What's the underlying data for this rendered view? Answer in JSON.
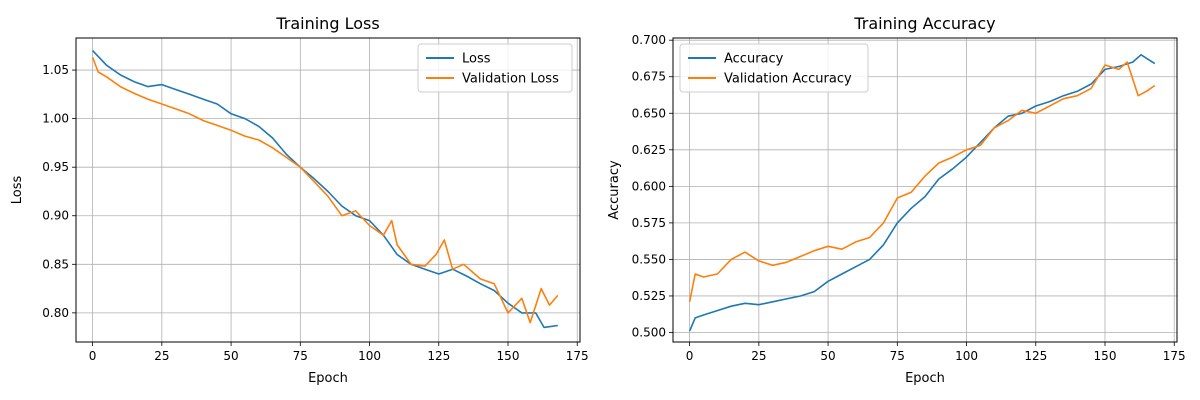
{
  "chart_data": [
    {
      "type": "line",
      "title": "Training Loss",
      "xlabel": "Epoch",
      "ylabel": "Loss",
      "xlim": [
        -6,
        176
      ],
      "ylim": [
        0.77,
        1.083
      ],
      "xticks": [
        0,
        25,
        50,
        75,
        100,
        125,
        150,
        175
      ],
      "yticks": [
        0.8,
        0.85,
        0.9,
        0.95,
        1.0,
        1.05
      ],
      "ytick_labels": [
        "0.80",
        "0.85",
        "0.90",
        "0.95",
        "1.00",
        "1.05"
      ],
      "grid": true,
      "legend_position": "upper right",
      "series": [
        {
          "name": "Loss",
          "color": "#1f77b4",
          "x": [
            0,
            5,
            10,
            15,
            20,
            25,
            30,
            35,
            40,
            45,
            50,
            55,
            60,
            65,
            70,
            75,
            80,
            85,
            90,
            95,
            100,
            105,
            110,
            115,
            120,
            125,
            130,
            135,
            140,
            145,
            150,
            155,
            160,
            163,
            168
          ],
          "y": [
            1.07,
            1.055,
            1.045,
            1.038,
            1.033,
            1.035,
            1.03,
            1.025,
            1.02,
            1.015,
            1.005,
            1.0,
            0.992,
            0.98,
            0.963,
            0.95,
            0.938,
            0.925,
            0.91,
            0.9,
            0.895,
            0.88,
            0.86,
            0.85,
            0.845,
            0.84,
            0.845,
            0.838,
            0.83,
            0.823,
            0.81,
            0.8,
            0.8,
            0.785,
            0.787
          ]
        },
        {
          "name": "Validation Loss",
          "color": "#ff7f0e",
          "x": [
            0,
            2,
            5,
            10,
            15,
            20,
            25,
            30,
            35,
            40,
            45,
            50,
            55,
            60,
            65,
            70,
            75,
            80,
            85,
            90,
            95,
            100,
            105,
            108,
            110,
            115,
            120,
            124,
            127,
            130,
            134,
            140,
            145,
            150,
            155,
            158,
            162,
            165,
            168
          ],
          "y": [
            1.063,
            1.048,
            1.043,
            1.033,
            1.026,
            1.02,
            1.015,
            1.01,
            1.005,
            0.998,
            0.993,
            0.988,
            0.982,
            0.978,
            0.97,
            0.96,
            0.95,
            0.935,
            0.92,
            0.9,
            0.905,
            0.89,
            0.88,
            0.895,
            0.87,
            0.85,
            0.848,
            0.86,
            0.875,
            0.845,
            0.85,
            0.835,
            0.83,
            0.8,
            0.815,
            0.79,
            0.825,
            0.808,
            0.818
          ]
        }
      ]
    },
    {
      "type": "line",
      "title": "Training Accuracy",
      "xlabel": "Epoch",
      "ylabel": "Accuracy",
      "xlim": [
        -6,
        176
      ],
      "ylim": [
        0.4935,
        0.7015
      ],
      "xticks": [
        0,
        25,
        50,
        75,
        100,
        125,
        150,
        175
      ],
      "yticks": [
        0.5,
        0.525,
        0.55,
        0.575,
        0.6,
        0.625,
        0.65,
        0.675,
        0.7
      ],
      "ytick_labels": [
        "0.500",
        "0.525",
        "0.550",
        "0.575",
        "0.600",
        "0.625",
        "0.650",
        "0.675",
        "0.700"
      ],
      "grid": true,
      "legend_position": "upper left",
      "series": [
        {
          "name": "Accuracy",
          "color": "#1f77b4",
          "x": [
            0,
            2,
            5,
            10,
            15,
            20,
            25,
            30,
            35,
            40,
            45,
            50,
            55,
            60,
            65,
            70,
            75,
            80,
            85,
            90,
            95,
            100,
            105,
            110,
            115,
            120,
            125,
            130,
            135,
            140,
            145,
            150,
            155,
            160,
            163,
            168
          ],
          "y": [
            0.501,
            0.51,
            0.512,
            0.515,
            0.518,
            0.52,
            0.519,
            0.521,
            0.523,
            0.525,
            0.528,
            0.535,
            0.54,
            0.545,
            0.55,
            0.56,
            0.575,
            0.585,
            0.593,
            0.605,
            0.612,
            0.62,
            0.63,
            0.64,
            0.648,
            0.65,
            0.655,
            0.658,
            0.662,
            0.665,
            0.67,
            0.68,
            0.682,
            0.685,
            0.69,
            0.684
          ]
        },
        {
          "name": "Validation Accuracy",
          "color": "#ff7f0e",
          "x": [
            0,
            2,
            5,
            10,
            15,
            20,
            25,
            30,
            35,
            40,
            45,
            50,
            55,
            60,
            65,
            70,
            75,
            80,
            85,
            90,
            95,
            100,
            105,
            110,
            115,
            120,
            125,
            130,
            135,
            140,
            145,
            150,
            155,
            158,
            162,
            165,
            168
          ],
          "y": [
            0.521,
            0.54,
            0.538,
            0.54,
            0.55,
            0.555,
            0.549,
            0.546,
            0.548,
            0.552,
            0.556,
            0.559,
            0.557,
            0.562,
            0.565,
            0.575,
            0.592,
            0.596,
            0.607,
            0.616,
            0.62,
            0.625,
            0.628,
            0.64,
            0.645,
            0.652,
            0.65,
            0.655,
            0.66,
            0.662,
            0.667,
            0.683,
            0.68,
            0.685,
            0.662,
            0.665,
            0.669
          ]
        }
      ]
    }
  ]
}
